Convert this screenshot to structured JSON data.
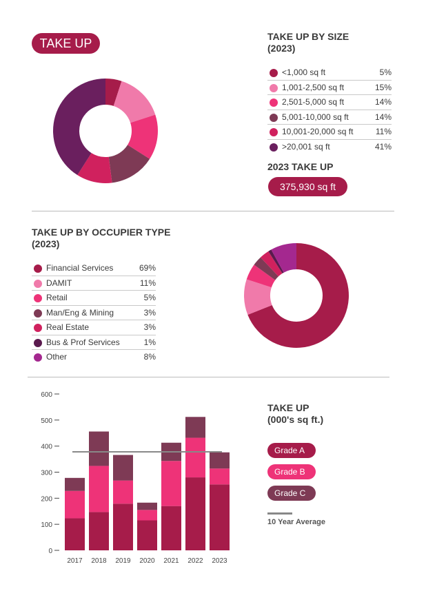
{
  "title": "TAKE UP",
  "size_section": {
    "title_line1": "TAKE UP BY SIZE",
    "title_line2": "(2023)",
    "items": [
      {
        "label": "<1,000 sq ft",
        "value": 5,
        "pct": "5%",
        "color": "#a61c4a"
      },
      {
        "label": "1,001-2,500 sq ft",
        "value": 15,
        "pct": "15%",
        "color": "#f07aaa"
      },
      {
        "label": "2,501-5,000 sq ft",
        "value": 14,
        "pct": "14%",
        "color": "#ee3378"
      },
      {
        "label": "5,001-10,000 sq ft",
        "value": 14,
        "pct": "14%",
        "color": "#7e3a55"
      },
      {
        "label": "10,001-20,000 sq ft",
        "value": 11,
        "pct": "11%",
        "color": "#d0215e"
      },
      {
        "label": ">20,001 sq ft",
        "value": 41,
        "pct": "41%",
        "color": "#6a1f5e"
      }
    ]
  },
  "total": {
    "label": "2023 TAKE UP",
    "value": "375,930 sq ft"
  },
  "occupier_section": {
    "title_line1": "TAKE UP BY OCCUPIER TYPE",
    "title_line2": "(2023)",
    "items": [
      {
        "label": "Financial Services",
        "value": 69,
        "pct": "69%",
        "color": "#a61c4a"
      },
      {
        "label": "DAMIT",
        "value": 11,
        "pct": "11%",
        "color": "#f07aaa"
      },
      {
        "label": "Retail",
        "value": 5,
        "pct": "5%",
        "color": "#ee3378"
      },
      {
        "label": "Man/Eng & Mining",
        "value": 3,
        "pct": "3%",
        "color": "#7e3a55"
      },
      {
        "label": "Real Estate",
        "value": 3,
        "pct": "3%",
        "color": "#d0215e"
      },
      {
        "label": "Bus & Prof Services",
        "value": 1,
        "pct": "1%",
        "color": "#5a1a4e"
      },
      {
        "label": "Other",
        "value": 8,
        "pct": "8%",
        "color": "#a4288f"
      }
    ]
  },
  "chart_data": {
    "type": "bar",
    "stacked": true,
    "title_line1": "TAKE UP",
    "title_line2": "(000's sq ft.)",
    "categories": [
      "2017",
      "2018",
      "2019",
      "2020",
      "2021",
      "2022",
      "2023"
    ],
    "series": [
      {
        "name": "Grade A",
        "color": "#a61c4a",
        "values": [
          123,
          147,
          179,
          115,
          170,
          280,
          253
        ]
      },
      {
        "name": "Grade B",
        "color": "#ee3378",
        "values": [
          105,
          177,
          89,
          40,
          173,
          152,
          61
        ]
      },
      {
        "name": "Grade C",
        "color": "#7e3a55",
        "values": [
          50,
          132,
          98,
          28,
          70,
          80,
          62
        ]
      }
    ],
    "average": {
      "name": "10 Year Average",
      "value": 378,
      "color": "#888888"
    },
    "ylim": [
      0,
      600
    ],
    "yticks": [
      "0",
      "100",
      "200",
      "300",
      "400",
      "500",
      "600"
    ],
    "legend": "right",
    "grid": false
  }
}
